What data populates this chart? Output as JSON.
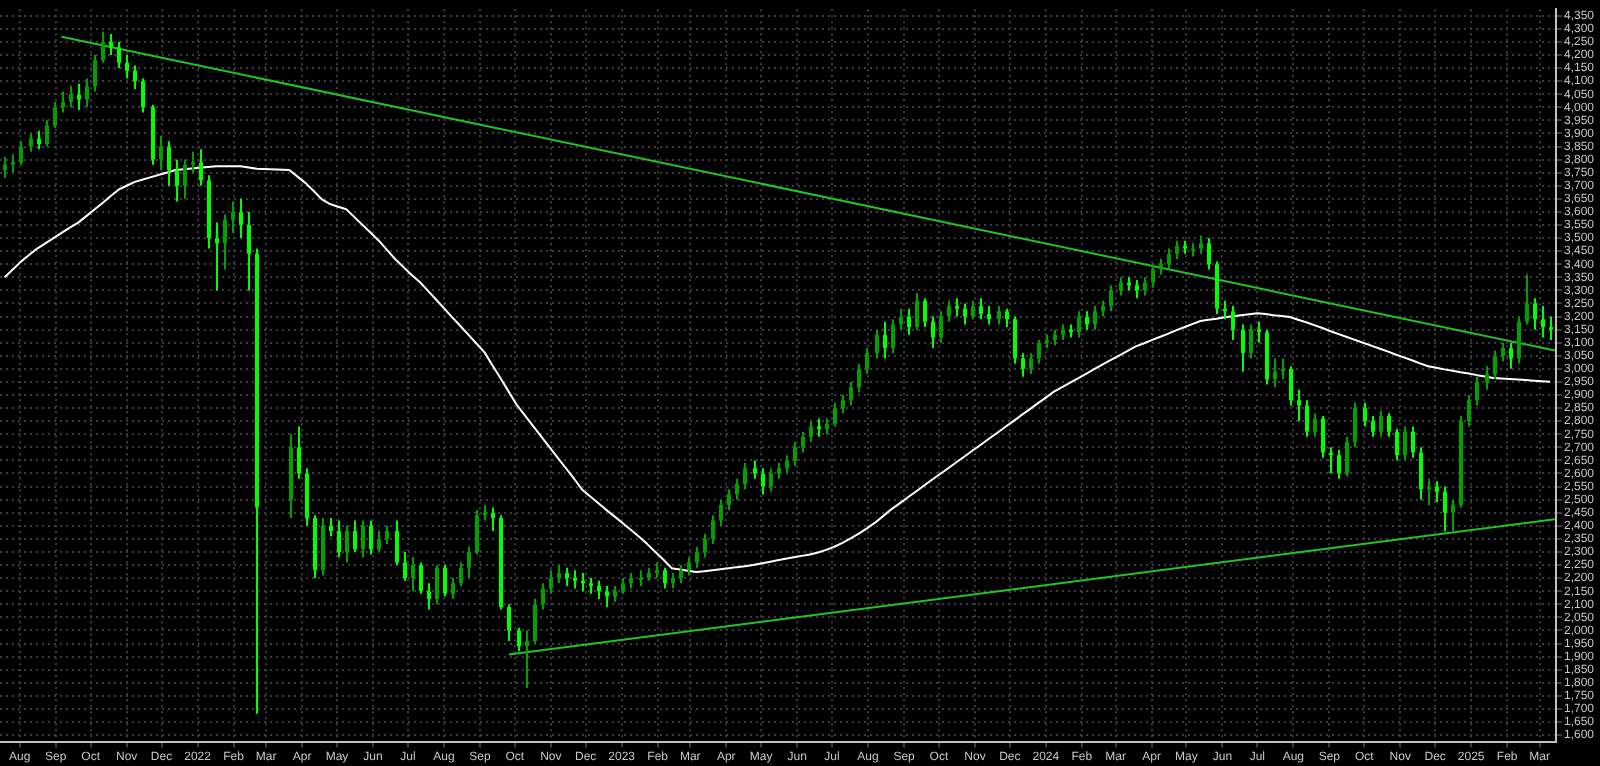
{
  "chart_data": {
    "type": "candlestick",
    "colors": [
      "#00a000",
      "#00a000",
      "#00a000",
      "#00a000",
      "#00ff00",
      "#00a000",
      "#00a000",
      "#00a000",
      "#00a000",
      "#00ff00",
      "#00a000",
      "#00a000",
      "#00a000",
      "#00ff00",
      "#00ff00",
      "#00ff00",
      "#00ff00",
      "#00ff00",
      "#00ff00",
      "#00a000",
      "#00ff00",
      "#00ff00",
      "#00a000",
      "#00a000",
      "#00ff00",
      "#00ff00",
      "#00ff00",
      "#00a000",
      "#00a000",
      "#00ff00",
      "#00ff00",
      "#00ff00",
      "#00a000",
      "#00ff00",
      "#00ff00",
      "#00ff00",
      "#00a000",
      "#00ff00",
      "#00ff00",
      "#00a000",
      "#00ff00",
      "#00a000",
      "#00ff00",
      "#00a000",
      "#00a000",
      "#00ff00",
      "#00ff00",
      "#00a000",
      "#00ff00",
      "#00ff00",
      "#00a000",
      "#00ff00",
      "#00a000",
      "#00a000",
      "#00a000",
      "#00a000",
      "#00a000",
      "#00ff00",
      "#00ff00",
      "#00ff00",
      "#00ff00",
      "#00a000",
      "#00a000",
      "#00a000",
      "#00a000",
      "#00a000",
      "#00ff00",
      "#00ff00",
      "#00ff00",
      "#00ff00",
      "#00ff00",
      "#00ff00",
      "#00a000",
      "#00a000",
      "#00a000",
      "#00a000",
      "#00a000",
      "#00a000",
      "#00ff00",
      "#00a000",
      "#00a000",
      "#00a000",
      "#00a000",
      "#00a000",
      "#00a000",
      "#00a000",
      "#00a000",
      "#00a000",
      "#00a000",
      "#00ff00",
      "#00ff00",
      "#00a000",
      "#00a000",
      "#00a000",
      "#00a000",
      "#00a000",
      "#00a000",
      "#00ff00",
      "#00a000",
      "#00a000",
      "#00a000",
      "#00a000",
      "#00a000",
      "#00a000",
      "#00a000",
      "#00ff00",
      "#00a000",
      "#00a000",
      "#00ff00",
      "#00a000",
      "#00ff00",
      "#00ff00",
      "#00a000",
      "#00a000",
      "#00ff00",
      "#00ff00",
      "#00a000",
      "#00ff00",
      "#00ff00",
      "#00a000",
      "#00ff00",
      "#00ff00",
      "#00ff00",
      "#00a000",
      "#00a000",
      "#00a000",
      "#00a000",
      "#00a000",
      "#00ff00",
      "#00a000",
      "#00ff00",
      "#00a000",
      "#00a000",
      "#00a000",
      "#00a000",
      "#00ff00",
      "#00ff00",
      "#00a000",
      "#00a000",
      "#00a000",
      "#00a000",
      "#00a000",
      "#00ff00",
      "#00a000",
      "#00a000",
      "#00ff00",
      "#00ff00",
      "#00ff00",
      "#00ff00",
      "#00ff00",
      "#00a000",
      "#00ff00",
      "#00ff00",
      "#00a000",
      "#00a000",
      "#00ff00",
      "#00ff00",
      "#00ff00",
      "#00a000",
      "#00ff00",
      "#00ff00",
      "#00ff00",
      "#00a000",
      "#00a000",
      "#00ff00",
      "#00ff00",
      "#00a000",
      "#00ff00",
      "#00ff00",
      "#00a000",
      "#00ff00",
      "#00ff00",
      "#00a000",
      "#00ff00",
      "#00ff00",
      "#00a000",
      "#00a000",
      "#00a000",
      "#00a000",
      "#00a000",
      "#00a000",
      "#00a000",
      "#00ff00",
      "#00a000",
      "#00a000",
      "#00ff00",
      "#00ff00",
      "#00ff00"
    ],
    "x": [
      "2021-07-19",
      "2021-07-26",
      "2021-08-02",
      "2021-08-09",
      "2021-08-16",
      "2021-08-23",
      "2021-08-30",
      "2021-09-06",
      "2021-09-13",
      "2021-09-20",
      "2021-09-27",
      "2021-10-04",
      "2021-10-11",
      "2021-10-18",
      "2021-10-25",
      "2021-11-01",
      "2021-11-08",
      "2021-11-15",
      "2021-11-22",
      "2021-11-29",
      "2021-12-06",
      "2021-12-13",
      "2021-12-20",
      "2021-12-27",
      "2022-01-03",
      "2022-01-10",
      "2022-01-17",
      "2022-01-24",
      "2022-01-31",
      "2022-02-07",
      "2022-02-14",
      "2022-02-21",
      "2022-03-21",
      "2022-03-28",
      "2022-04-04",
      "2022-04-11",
      "2022-04-18",
      "2022-04-25",
      "2022-05-02",
      "2022-05-09",
      "2022-05-16",
      "2022-05-23",
      "2022-05-30",
      "2022-06-06",
      "2022-06-13",
      "2022-06-20",
      "2022-06-27",
      "2022-07-04",
      "2022-07-11",
      "2022-07-18",
      "2022-07-25",
      "2022-08-01",
      "2022-08-08",
      "2022-08-15",
      "2022-08-22",
      "2022-08-29",
      "2022-09-05",
      "2022-09-12",
      "2022-09-19",
      "2022-09-26",
      "2022-10-03",
      "2022-10-10",
      "2022-10-17",
      "2022-10-24",
      "2022-10-31",
      "2022-11-07",
      "2022-11-14",
      "2022-11-21",
      "2022-11-28",
      "2022-12-05",
      "2022-12-12",
      "2022-12-19",
      "2022-12-26",
      "2023-01-02",
      "2023-01-09",
      "2023-01-16",
      "2023-01-23",
      "2023-01-30",
      "2023-02-06",
      "2023-02-13",
      "2023-02-20",
      "2023-02-27",
      "2023-03-06",
      "2023-03-13",
      "2023-03-20",
      "2023-03-27",
      "2023-04-03",
      "2023-04-10",
      "2023-04-17",
      "2023-04-24",
      "2023-05-01",
      "2023-05-08",
      "2023-05-15",
      "2023-05-22",
      "2023-05-29",
      "2023-06-05",
      "2023-06-12",
      "2023-06-19",
      "2023-06-26",
      "2023-07-03",
      "2023-07-10",
      "2023-07-17",
      "2023-07-24",
      "2023-07-31",
      "2023-08-07",
      "2023-08-14",
      "2023-08-21",
      "2023-08-28",
      "2023-09-04",
      "2023-09-11",
      "2023-09-18",
      "2023-09-25",
      "2023-10-02",
      "2023-10-09",
      "2023-10-16",
      "2023-10-23",
      "2023-10-30",
      "2023-11-06",
      "2023-11-13",
      "2023-11-20",
      "2023-11-27",
      "2023-12-04",
      "2023-12-11",
      "2023-12-18",
      "2023-12-25",
      "2024-01-01",
      "2024-01-08",
      "2024-01-15",
      "2024-01-22",
      "2024-01-29",
      "2024-02-05",
      "2024-02-12",
      "2024-02-19",
      "2024-02-26",
      "2024-03-04",
      "2024-03-11",
      "2024-03-18",
      "2024-03-25",
      "2024-04-01",
      "2024-04-08",
      "2024-04-15",
      "2024-04-22",
      "2024-04-29",
      "2024-05-06",
      "2024-05-13",
      "2024-05-20",
      "2024-05-27",
      "2024-06-03",
      "2024-06-10",
      "2024-06-17",
      "2024-06-24",
      "2024-07-01",
      "2024-07-08",
      "2024-07-15",
      "2024-07-22",
      "2024-07-29",
      "2024-08-05",
      "2024-08-12",
      "2024-08-19",
      "2024-08-26",
      "2024-09-02",
      "2024-09-09",
      "2024-09-16",
      "2024-09-23",
      "2024-09-30",
      "2024-10-07",
      "2024-10-14",
      "2024-10-21",
      "2024-10-28",
      "2024-11-04",
      "2024-11-11",
      "2024-11-18",
      "2024-11-25",
      "2024-12-02",
      "2024-12-09",
      "2024-12-16",
      "2024-12-23",
      "2024-12-30",
      "2025-01-06",
      "2025-01-13",
      "2025-01-20",
      "2025-01-27",
      "2025-02-03",
      "2025-02-10",
      "2025-02-17",
      "2025-02-24",
      "2025-03-03",
      "2025-03-10"
    ],
    "ohlc": [
      [
        3760,
        3810,
        3730,
        3780
      ],
      [
        3780,
        3820,
        3750,
        3790
      ],
      [
        3790,
        3870,
        3780,
        3850
      ],
      [
        3850,
        3900,
        3830,
        3880
      ],
      [
        3880,
        3910,
        3840,
        3860
      ],
      [
        3860,
        3950,
        3850,
        3930
      ],
      [
        3930,
        4020,
        3920,
        4000
      ],
      [
        4000,
        4060,
        3980,
        4020
      ],
      [
        4020,
        4080,
        4000,
        4050
      ],
      [
        4050,
        4090,
        3990,
        4030
      ],
      [
        4030,
        4110,
        4000,
        4080
      ],
      [
        4080,
        4200,
        4060,
        4180
      ],
      [
        4180,
        4290,
        4170,
        4250
      ],
      [
        4250,
        4280,
        4200,
        4230
      ],
      [
        4230,
        4250,
        4150,
        4170
      ],
      [
        4170,
        4200,
        4110,
        4140
      ],
      [
        4140,
        4160,
        4070,
        4100
      ],
      [
        4100,
        4110,
        3980,
        4000
      ],
      [
        4000,
        4010,
        3780,
        3800
      ],
      [
        3800,
        3890,
        3760,
        3850
      ],
      [
        3850,
        3870,
        3700,
        3760
      ],
      [
        3760,
        3800,
        3640,
        3700
      ],
      [
        3700,
        3800,
        3650,
        3780
      ],
      [
        3780,
        3830,
        3750,
        3790
      ],
      [
        3790,
        3840,
        3700,
        3720
      ],
      [
        3720,
        3740,
        3460,
        3500
      ],
      [
        3500,
        3560,
        3300,
        3480
      ],
      [
        3480,
        3590,
        3380,
        3570
      ],
      [
        3570,
        3640,
        3520,
        3600
      ],
      [
        3600,
        3650,
        3500,
        3550
      ],
      [
        3550,
        3600,
        3300,
        3440
      ],
      [
        3440,
        3460,
        1681,
        2470
      ],
      [
        2500,
        2750,
        2430,
        2700
      ],
      [
        2700,
        2780,
        2580,
        2600
      ],
      [
        2600,
        2620,
        2400,
        2430
      ],
      [
        2430,
        2440,
        2200,
        2230
      ],
      [
        2230,
        2430,
        2210,
        2400
      ],
      [
        2400,
        2430,
        2360,
        2380
      ],
      [
        2380,
        2420,
        2280,
        2300
      ],
      [
        2300,
        2400,
        2260,
        2380
      ],
      [
        2380,
        2420,
        2300,
        2310
      ],
      [
        2310,
        2420,
        2280,
        2400
      ],
      [
        2400,
        2420,
        2290,
        2310
      ],
      [
        2310,
        2380,
        2300,
        2350
      ],
      [
        2350,
        2400,
        2330,
        2380
      ],
      [
        2380,
        2420,
        2250,
        2260
      ],
      [
        2260,
        2300,
        2190,
        2200
      ],
      [
        2200,
        2280,
        2150,
        2250
      ],
      [
        2250,
        2260,
        2140,
        2150
      ],
      [
        2150,
        2180,
        2080,
        2120
      ],
      [
        2120,
        2250,
        2100,
        2240
      ],
      [
        2240,
        2250,
        2130,
        2140
      ],
      [
        2140,
        2200,
        2120,
        2180
      ],
      [
        2180,
        2260,
        2170,
        2240
      ],
      [
        2240,
        2320,
        2200,
        2300
      ],
      [
        2300,
        2460,
        2290,
        2440
      ],
      [
        2440,
        2480,
        2420,
        2450
      ],
      [
        2450,
        2470,
        2380,
        2430
      ],
      [
        2430,
        2440,
        2080,
        2090
      ],
      [
        2090,
        2100,
        1960,
        2000
      ],
      [
        2000,
        2010,
        1920,
        1940
      ],
      [
        1940,
        2000,
        1780,
        1960
      ],
      [
        1960,
        2120,
        1950,
        2100
      ],
      [
        2100,
        2180,
        2080,
        2160
      ],
      [
        2160,
        2230,
        2140,
        2200
      ],
      [
        2200,
        2250,
        2180,
        2220
      ],
      [
        2220,
        2240,
        2170,
        2200
      ],
      [
        2200,
        2230,
        2160,
        2190
      ],
      [
        2190,
        2220,
        2150,
        2180
      ],
      [
        2180,
        2200,
        2140,
        2170
      ],
      [
        2170,
        2190,
        2120,
        2150
      ],
      [
        2150,
        2170,
        2090,
        2130
      ],
      [
        2130,
        2170,
        2110,
        2150
      ],
      [
        2150,
        2200,
        2140,
        2180
      ],
      [
        2180,
        2220,
        2160,
        2200
      ],
      [
        2200,
        2230,
        2170,
        2200
      ],
      [
        2200,
        2240,
        2190,
        2220
      ],
      [
        2220,
        2260,
        2200,
        2230
      ],
      [
        2230,
        2240,
        2160,
        2180
      ],
      [
        2180,
        2220,
        2160,
        2200
      ],
      [
        2200,
        2250,
        2180,
        2230
      ],
      [
        2230,
        2280,
        2210,
        2260
      ],
      [
        2260,
        2320,
        2240,
        2300
      ],
      [
        2300,
        2370,
        2280,
        2350
      ],
      [
        2350,
        2440,
        2330,
        2420
      ],
      [
        2420,
        2500,
        2400,
        2480
      ],
      [
        2480,
        2540,
        2460,
        2520
      ],
      [
        2520,
        2580,
        2500,
        2560
      ],
      [
        2560,
        2640,
        2540,
        2620
      ],
      [
        2620,
        2650,
        2580,
        2600
      ],
      [
        2600,
        2620,
        2520,
        2550
      ],
      [
        2550,
        2620,
        2530,
        2600
      ],
      [
        2600,
        2640,
        2580,
        2620
      ],
      [
        2620,
        2670,
        2600,
        2650
      ],
      [
        2650,
        2720,
        2630,
        2700
      ],
      [
        2700,
        2760,
        2680,
        2740
      ],
      [
        2740,
        2800,
        2720,
        2780
      ],
      [
        2780,
        2810,
        2740,
        2770
      ],
      [
        2770,
        2810,
        2750,
        2790
      ],
      [
        2790,
        2870,
        2780,
        2850
      ],
      [
        2850,
        2900,
        2830,
        2880
      ],
      [
        2880,
        2950,
        2860,
        2930
      ],
      [
        2930,
        3020,
        2910,
        3000
      ],
      [
        3000,
        3080,
        2980,
        3060
      ],
      [
        3060,
        3150,
        3040,
        3130
      ],
      [
        3130,
        3180,
        3040,
        3080
      ],
      [
        3080,
        3190,
        3060,
        3170
      ],
      [
        3170,
        3230,
        3150,
        3200
      ],
      [
        3200,
        3230,
        3130,
        3160
      ],
      [
        3160,
        3290,
        3150,
        3260
      ],
      [
        3260,
        3270,
        3160,
        3180
      ],
      [
        3180,
        3200,
        3080,
        3120
      ],
      [
        3120,
        3220,
        3100,
        3200
      ],
      [
        3200,
        3260,
        3180,
        3240
      ],
      [
        3240,
        3270,
        3200,
        3230
      ],
      [
        3230,
        3250,
        3170,
        3200
      ],
      [
        3200,
        3260,
        3190,
        3240
      ],
      [
        3240,
        3270,
        3190,
        3210
      ],
      [
        3210,
        3240,
        3170,
        3190
      ],
      [
        3190,
        3240,
        3170,
        3220
      ],
      [
        3220,
        3230,
        3160,
        3190
      ],
      [
        3190,
        3200,
        3020,
        3040
      ],
      [
        3040,
        3060,
        2970,
        3000
      ],
      [
        3000,
        3060,
        2980,
        3040
      ],
      [
        3040,
        3110,
        3020,
        3100
      ],
      [
        3100,
        3130,
        3080,
        3110
      ],
      [
        3110,
        3150,
        3090,
        3130
      ],
      [
        3130,
        3170,
        3110,
        3150
      ],
      [
        3150,
        3170,
        3120,
        3140
      ],
      [
        3140,
        3220,
        3120,
        3200
      ],
      [
        3200,
        3220,
        3150,
        3170
      ],
      [
        3170,
        3240,
        3150,
        3220
      ],
      [
        3220,
        3260,
        3200,
        3240
      ],
      [
        3240,
        3320,
        3220,
        3300
      ],
      [
        3300,
        3350,
        3280,
        3330
      ],
      [
        3330,
        3350,
        3300,
        3320
      ],
      [
        3320,
        3340,
        3270,
        3300
      ],
      [
        3300,
        3350,
        3280,
        3330
      ],
      [
        3330,
        3400,
        3310,
        3380
      ],
      [
        3380,
        3420,
        3360,
        3400
      ],
      [
        3400,
        3460,
        3380,
        3440
      ],
      [
        3440,
        3490,
        3420,
        3470
      ],
      [
        3470,
        3490,
        3440,
        3460
      ],
      [
        3460,
        3480,
        3430,
        3460
      ],
      [
        3460,
        3510,
        3440,
        3480
      ],
      [
        3480,
        3500,
        3380,
        3400
      ],
      [
        3400,
        3410,
        3210,
        3230
      ],
      [
        3230,
        3260,
        3190,
        3220
      ],
      [
        3220,
        3240,
        3110,
        3150
      ],
      [
        3150,
        3170,
        2990,
        3060
      ],
      [
        3060,
        3170,
        3040,
        3150
      ],
      [
        3150,
        3180,
        3100,
        3140
      ],
      [
        3140,
        3150,
        2940,
        2960
      ],
      [
        2960,
        3040,
        2930,
        2990
      ],
      [
        2990,
        3040,
        2960,
        3000
      ],
      [
        3000,
        3010,
        2860,
        2880
      ],
      [
        2880,
        2920,
        2800,
        2860
      ],
      [
        2860,
        2880,
        2740,
        2760
      ],
      [
        2760,
        2830,
        2740,
        2810
      ],
      [
        2810,
        2820,
        2660,
        2680
      ],
      [
        2680,
        2700,
        2600,
        2670
      ],
      [
        2670,
        2690,
        2580,
        2600
      ],
      [
        2600,
        2740,
        2590,
        2720
      ],
      [
        2720,
        2870,
        2700,
        2850
      ],
      [
        2850,
        2870,
        2780,
        2800
      ],
      [
        2800,
        2820,
        2740,
        2760
      ],
      [
        2760,
        2840,
        2740,
        2820
      ],
      [
        2820,
        2830,
        2740,
        2760
      ],
      [
        2760,
        2770,
        2650,
        2670
      ],
      [
        2670,
        2780,
        2650,
        2760
      ],
      [
        2760,
        2780,
        2660,
        2680
      ],
      [
        2680,
        2700,
        2500,
        2540
      ],
      [
        2540,
        2580,
        2480,
        2550
      ],
      [
        2550,
        2570,
        2490,
        2530
      ],
      [
        2530,
        2550,
        2380,
        2450
      ],
      [
        2450,
        2500,
        2380,
        2480
      ],
      [
        2480,
        2820,
        2470,
        2800
      ],
      [
        2800,
        2900,
        2780,
        2880
      ],
      [
        2880,
        2970,
        2860,
        2950
      ],
      [
        2950,
        3010,
        2920,
        2980
      ],
      [
        2980,
        3070,
        2960,
        3050
      ],
      [
        3050,
        3100,
        3030,
        3080
      ],
      [
        3080,
        3100,
        3000,
        3040
      ],
      [
        3040,
        3200,
        3020,
        3180
      ],
      [
        3180,
        3360,
        3170,
        3250
      ],
      [
        3250,
        3270,
        3150,
        3190
      ],
      [
        3190,
        3240,
        3120,
        3160
      ],
      [
        3160,
        3200,
        3110,
        3150
      ]
    ],
    "series": [
      {
        "type": "line",
        "color": "#ffffff",
        "values": [
          3350,
          3380,
          3410,
          3435,
          3460,
          3480,
          3500,
          3520,
          3540,
          3558,
          3583,
          3608,
          3633,
          3660,
          3685,
          3700,
          3715,
          3724,
          3733,
          3742,
          3751,
          3760,
          3763,
          3766,
          3769,
          3772,
          3775,
          3775,
          3775,
          3775,
          3770,
          3765,
          3760,
          3735,
          3710,
          3680,
          3648,
          3630,
          3620,
          3610,
          3580,
          3550,
          3520,
          3490,
          3455,
          3420,
          3390,
          3360,
          3333,
          3300,
          3266,
          3232,
          3198,
          3165,
          3131,
          3097,
          3063,
          3012,
          2962,
          2911,
          2860,
          2820,
          2780,
          2740,
          2700,
          2660,
          2620,
          2580,
          2538,
          2512,
          2486,
          2460,
          2435,
          2410,
          2384,
          2358,
          2330,
          2300,
          2270,
          2238,
          2233,
          2228,
          2223,
          2226,
          2230,
          2234,
          2238,
          2242,
          2245,
          2250,
          2256,
          2262,
          2268,
          2274,
          2280,
          2285,
          2290,
          2298,
          2308,
          2320,
          2335,
          2352,
          2370,
          2390,
          2412,
          2437,
          2463,
          2485,
          2508,
          2530,
          2553,
          2576,
          2598,
          2620,
          2643,
          2665,
          2688,
          2710,
          2733,
          2755,
          2778,
          2800,
          2823,
          2845,
          2868,
          2890,
          2913,
          2930,
          2947,
          2965,
          2982,
          3000,
          3017,
          3034,
          3051,
          3068,
          3085,
          3097,
          3110,
          3122,
          3134,
          3147,
          3159,
          3171,
          3183,
          3188,
          3192,
          3197,
          3201,
          3205,
          3209,
          3213,
          3210,
          3205,
          3202,
          3198,
          3188,
          3178,
          3167,
          3156,
          3144,
          3133,
          3122,
          3111,
          3100,
          3089,
          3078,
          3067,
          3055,
          3044,
          3033,
          3021,
          3010,
          3004,
          2998,
          2993,
          2987,
          2982,
          2976,
          2971,
          2965,
          2963,
          2961,
          2959,
          2957,
          2955,
          2953,
          2951
        ]
      },
      {
        "type": "line",
        "color": "#22c322",
        "x": [
          "2021-09-06",
          "2025-03-14"
        ],
        "values": [
          4270,
          3070
        ]
      },
      {
        "type": "line",
        "color": "#22c322",
        "x": [
          "2022-09-26",
          "2025-03-14"
        ],
        "values": [
          1908,
          2425
        ]
      }
    ],
    "xlim": [
      "2021-07-15",
      "2025-03-15"
    ],
    "xticks": [
      {
        "value": "2021-08-01",
        "label": "Aug"
      },
      {
        "value": "2021-09-01",
        "label": "Sep"
      },
      {
        "value": "2021-10-01",
        "label": "Oct"
      },
      {
        "value": "2021-11-01",
        "label": "Nov"
      },
      {
        "value": "2021-12-01",
        "label": "Dec"
      },
      {
        "value": "2022-01-01",
        "label": "2022"
      },
      {
        "value": "2022-02-01",
        "label": "Feb"
      },
      {
        "value": "2022-03-01",
        "label": "Mar"
      },
      {
        "value": "2022-04-01",
        "label": "Apr"
      },
      {
        "value": "2022-05-01",
        "label": "May"
      },
      {
        "value": "2022-06-01",
        "label": "Jun"
      },
      {
        "value": "2022-07-01",
        "label": "Jul"
      },
      {
        "value": "2022-08-01",
        "label": "Aug"
      },
      {
        "value": "2022-09-01",
        "label": "Sep"
      },
      {
        "value": "2022-10-01",
        "label": "Oct"
      },
      {
        "value": "2022-11-01",
        "label": "Nov"
      },
      {
        "value": "2022-12-01",
        "label": "Dec"
      },
      {
        "value": "2023-01-01",
        "label": "2023"
      },
      {
        "value": "2023-02-01",
        "label": "Feb"
      },
      {
        "value": "2023-03-01",
        "label": "Mar"
      },
      {
        "value": "2023-04-01",
        "label": "Apr"
      },
      {
        "value": "2023-05-01",
        "label": "May"
      },
      {
        "value": "2023-06-01",
        "label": "Jun"
      },
      {
        "value": "2023-07-01",
        "label": "Jul"
      },
      {
        "value": "2023-08-01",
        "label": "Aug"
      },
      {
        "value": "2023-09-01",
        "label": "Sep"
      },
      {
        "value": "2023-10-01",
        "label": "Oct"
      },
      {
        "value": "2023-11-01",
        "label": "Nov"
      },
      {
        "value": "2023-12-01",
        "label": "Dec"
      },
      {
        "value": "2024-01-01",
        "label": "2024"
      },
      {
        "value": "2024-02-01",
        "label": "Feb"
      },
      {
        "value": "2024-03-01",
        "label": "Mar"
      },
      {
        "value": "2024-04-01",
        "label": "Apr"
      },
      {
        "value": "2024-05-01",
        "label": "May"
      },
      {
        "value": "2024-06-01",
        "label": "Jun"
      },
      {
        "value": "2024-07-01",
        "label": "Jul"
      },
      {
        "value": "2024-08-01",
        "label": "Aug"
      },
      {
        "value": "2024-09-01",
        "label": "Sep"
      },
      {
        "value": "2024-10-01",
        "label": "Oct"
      },
      {
        "value": "2024-11-01",
        "label": "Nov"
      },
      {
        "value": "2024-12-01",
        "label": "Dec"
      },
      {
        "value": "2025-01-01",
        "label": "2025"
      },
      {
        "value": "2025-02-01",
        "label": "Feb"
      },
      {
        "value": "2025-03-01",
        "label": "Mar"
      }
    ],
    "ylim": [
      1575,
      4375
    ],
    "yticks": [
      {
        "value": 1600,
        "label": "1,600"
      },
      {
        "value": 1650,
        "label": "1,650"
      },
      {
        "value": 1700,
        "label": "1,700"
      },
      {
        "value": 1750,
        "label": "1,750"
      },
      {
        "value": 1800,
        "label": "1,800"
      },
      {
        "value": 1850,
        "label": "1,850"
      },
      {
        "value": 1900,
        "label": "1,900"
      },
      {
        "value": 1950,
        "label": "1,950"
      },
      {
        "value": 2000,
        "label": "2,000"
      },
      {
        "value": 2050,
        "label": "2,050"
      },
      {
        "value": 2100,
        "label": "2,100"
      },
      {
        "value": 2150,
        "label": "2,150"
      },
      {
        "value": 2200,
        "label": "2,200"
      },
      {
        "value": 2250,
        "label": "2,250"
      },
      {
        "value": 2300,
        "label": "2,300"
      },
      {
        "value": 2350,
        "label": "2,350"
      },
      {
        "value": 2400,
        "label": "2,400"
      },
      {
        "value": 2450,
        "label": "2,450"
      },
      {
        "value": 2500,
        "label": "2,500"
      },
      {
        "value": 2550,
        "label": "2,550"
      },
      {
        "value": 2600,
        "label": "2,600"
      },
      {
        "value": 2650,
        "label": "2,650"
      },
      {
        "value": 2700,
        "label": "2,700"
      },
      {
        "value": 2750,
        "label": "2,750"
      },
      {
        "value": 2800,
        "label": "2,800"
      },
      {
        "value": 2850,
        "label": "2,850"
      },
      {
        "value": 2900,
        "label": "2,900"
      },
      {
        "value": 2950,
        "label": "2,950"
      },
      {
        "value": 3000,
        "label": "3,000"
      },
      {
        "value": 3050,
        "label": "3,050"
      },
      {
        "value": 3100,
        "label": "3,100"
      },
      {
        "value": 3150,
        "label": "3,150"
      },
      {
        "value": 3200,
        "label": "3,200"
      },
      {
        "value": 3250,
        "label": "3,250"
      },
      {
        "value": 3300,
        "label": "3,300"
      },
      {
        "value": 3350,
        "label": "3,350"
      },
      {
        "value": 3400,
        "label": "3,400"
      },
      {
        "value": 3450,
        "label": "3,450"
      },
      {
        "value": 3500,
        "label": "3,500"
      },
      {
        "value": 3550,
        "label": "3,550"
      },
      {
        "value": 3600,
        "label": "3,600"
      },
      {
        "value": 3650,
        "label": "3,650"
      },
      {
        "value": 3700,
        "label": "3,700"
      },
      {
        "value": 3750,
        "label": "3,750"
      },
      {
        "value": 3800,
        "label": "3,800"
      },
      {
        "value": 3850,
        "label": "3,850"
      },
      {
        "value": 3900,
        "label": "3,900"
      },
      {
        "value": 3950,
        "label": "3,950"
      },
      {
        "value": 4000,
        "label": "4,000"
      },
      {
        "value": 4050,
        "label": "4,050"
      },
      {
        "value": 4100,
        "label": "4,100"
      },
      {
        "value": 4150,
        "label": "4,150"
      },
      {
        "value": 4200,
        "label": "4,200"
      },
      {
        "value": 4250,
        "label": "4,250"
      },
      {
        "value": 4300,
        "label": "4,300"
      },
      {
        "value": 4350,
        "label": "4,350"
      }
    ],
    "grid": true
  }
}
